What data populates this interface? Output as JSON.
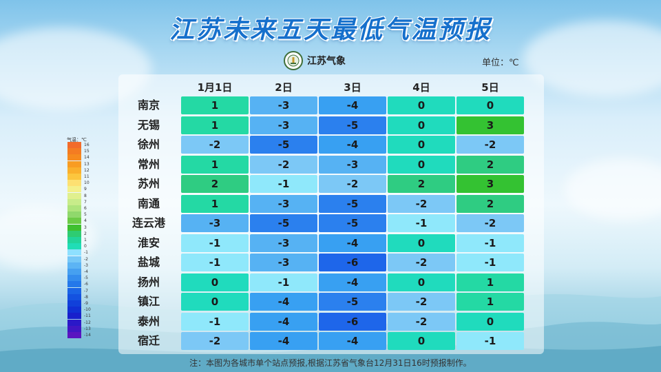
{
  "title": "江苏未来五天最低气温预报",
  "logo_text": "江苏气象",
  "unit": "单位：℃",
  "note": "注：本图为各城市单个站点预报,根据江苏省气象台12月31日16时预报制作。",
  "legend_title": "气温：℃",
  "legend": {
    "values": [
      16,
      15,
      14,
      13,
      12,
      11,
      10,
      9,
      8,
      7,
      6,
      5,
      4,
      3,
      2,
      1,
      0,
      -1,
      -2,
      -3,
      -4,
      -5,
      -6,
      -7,
      -8,
      -9,
      -10,
      -11,
      -12,
      -13,
      -14
    ],
    "colors": [
      "#f26b2a",
      "#f47c22",
      "#f68a1e",
      "#f89c22",
      "#fab02c",
      "#fcc63e",
      "#fde072",
      "#f4f08a",
      "#e0f08e",
      "#c8ec8a",
      "#aee47c",
      "#90d86c",
      "#6ccb46",
      "#3fc030",
      "#2ecc72",
      "#22d49a",
      "#20ddb6",
      "#8ee0ff",
      "#76c8f7",
      "#5cb4f4",
      "#46a0f0",
      "#348ced",
      "#2478ea",
      "#1a64e6",
      "#1452e0",
      "#1040da",
      "#1030d4",
      "#1820cc",
      "#2a18c8",
      "#4016c4",
      "#5a14c0"
    ]
  },
  "chart_data": {
    "type": "table",
    "title": "江苏未来五天最低气温预报",
    "unit": "℃",
    "columns": [
      "1月1日",
      "2日",
      "3日",
      "4日",
      "5日"
    ],
    "rows": [
      {
        "city": "南京",
        "values": [
          1,
          -3,
          -4,
          0,
          0
        ]
      },
      {
        "city": "无锡",
        "values": [
          1,
          -3,
          -5,
          0,
          3
        ]
      },
      {
        "city": "徐州",
        "values": [
          -2,
          -5,
          -4,
          0,
          -2
        ]
      },
      {
        "city": "常州",
        "values": [
          1,
          -2,
          -3,
          0,
          2
        ]
      },
      {
        "city": "苏州",
        "values": [
          2,
          -1,
          -2,
          2,
          3
        ]
      },
      {
        "city": "南通",
        "values": [
          1,
          -3,
          -5,
          -2,
          2
        ]
      },
      {
        "city": "连云港",
        "values": [
          -3,
          -5,
          -5,
          -1,
          -2
        ]
      },
      {
        "city": "淮安",
        "values": [
          -1,
          -3,
          -4,
          0,
          -1
        ]
      },
      {
        "city": "盐城",
        "values": [
          -1,
          -3,
          -6,
          -2,
          -1
        ]
      },
      {
        "city": "扬州",
        "values": [
          0,
          -1,
          -4,
          0,
          1
        ]
      },
      {
        "city": "镇江",
        "values": [
          0,
          -4,
          -5,
          -2,
          1
        ]
      },
      {
        "city": "泰州",
        "values": [
          -1,
          -4,
          -6,
          -2,
          0
        ]
      },
      {
        "city": "宿迁",
        "values": [
          -2,
          -4,
          -4,
          0,
          -1
        ]
      }
    ]
  }
}
